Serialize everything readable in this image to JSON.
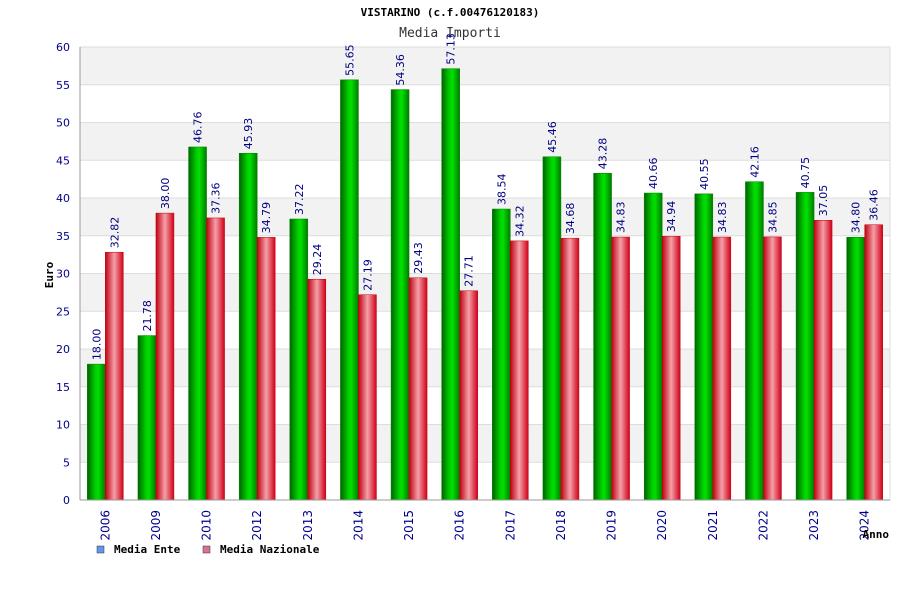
{
  "chart_data": {
    "type": "bar",
    "title": "VISTARINO (c.f.00476120183)",
    "subtitle": "Media Importi",
    "xlabel": "Anno",
    "ylabel": "Euro",
    "ylim": [
      0,
      60
    ],
    "yticks": [
      0,
      5,
      10,
      15,
      20,
      25,
      30,
      35,
      40,
      45,
      50,
      55,
      60
    ],
    "categories": [
      "2006",
      "2009",
      "2010",
      "2012",
      "2013",
      "2014",
      "2015",
      "2016",
      "2017",
      "2018",
      "2019",
      "2020",
      "2021",
      "2022",
      "2023",
      "2024"
    ],
    "series": [
      {
        "name": "Media Ente",
        "color": "#00c000",
        "legend_color": "#6495ed",
        "values": [
          18.0,
          21.78,
          46.76,
          45.93,
          37.22,
          55.65,
          54.36,
          57.13,
          38.54,
          45.46,
          43.28,
          40.66,
          40.55,
          42.16,
          40.75,
          34.8
        ],
        "labels": [
          "18.00",
          "21.78",
          "46.76",
          "45.93",
          "37.22",
          "55.65",
          "54.36",
          "57.13",
          "38.54",
          "45.46",
          "43.28",
          "40.66",
          "40.55",
          "42.16",
          "40.75",
          "34.80"
        ]
      },
      {
        "name": "Media Nazionale",
        "color": "#e8101e",
        "legend_color": "#db7093",
        "values": [
          32.82,
          38.0,
          37.36,
          34.79,
          29.24,
          27.19,
          29.43,
          27.71,
          34.32,
          34.68,
          34.83,
          34.94,
          34.83,
          34.85,
          37.05,
          36.46
        ],
        "labels": [
          "32.82",
          "38.00",
          "37.36",
          "34.79",
          "29.24",
          "27.19",
          "29.43",
          "27.71",
          "34.32",
          "34.68",
          "34.83",
          "34.94",
          "34.83",
          "34.85",
          "37.05",
          "36.46"
        ]
      }
    ],
    "grid": true,
    "legend_position": "bottom-left"
  }
}
